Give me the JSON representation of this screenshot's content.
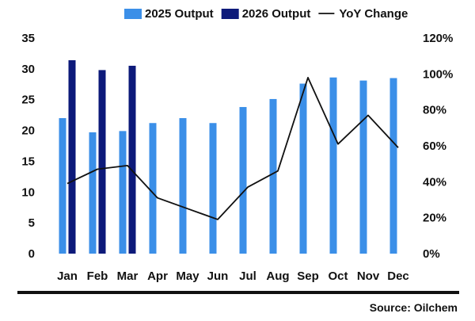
{
  "chart_data": {
    "type": "bar",
    "categories": [
      "Jan",
      "Feb",
      "Mar",
      "Apr",
      "May",
      "Jun",
      "Jul",
      "Aug",
      "Sep",
      "Oct",
      "Nov",
      "Dec"
    ],
    "series": [
      {
        "name": "2025 Output",
        "kind": "bar",
        "axis": "left",
        "color": "#3b8fe8",
        "values": [
          22.0,
          19.7,
          19.9,
          21.2,
          22.0,
          21.2,
          23.8,
          25.1,
          27.6,
          28.6,
          28.1,
          28.5
        ]
      },
      {
        "name": "2026 Output",
        "kind": "bar",
        "axis": "left",
        "color": "#0d1a7a",
        "values": [
          31.4,
          29.8,
          30.5,
          null,
          null,
          null,
          null,
          null,
          null,
          null,
          null,
          null
        ]
      },
      {
        "name": "YoY Change",
        "kind": "line",
        "axis": "right",
        "color": "#111111",
        "values": [
          39,
          47,
          49,
          31,
          25,
          19,
          37,
          46,
          98,
          61,
          77,
          59
        ]
      }
    ],
    "left_axis": {
      "min": 0,
      "max": 35,
      "ticks": [
        "0",
        "5",
        "10",
        "15",
        "20",
        "25",
        "30",
        "35"
      ]
    },
    "right_axis": {
      "min": 0,
      "max": 120,
      "ticks": [
        "0%",
        "20%",
        "40%",
        "60%",
        "80%",
        "100%",
        "120%"
      ]
    },
    "grid": false,
    "legend_position": "top",
    "source": "Source: Oilchem"
  }
}
